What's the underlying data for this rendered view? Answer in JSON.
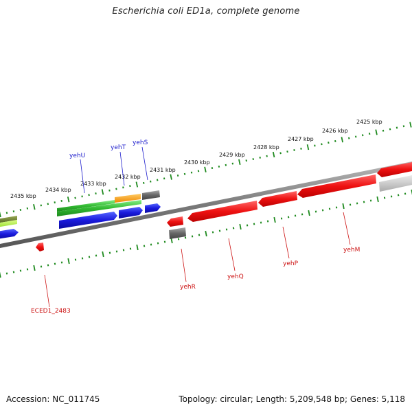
{
  "title": "Escherichia coli ED1a, complete genome",
  "footer": {
    "accession": "Accession: NC_011745",
    "summary": "Topology: circular; Length: 5,209,548 bp; Genes: 5,118"
  },
  "colors": {
    "backbone": "#8a8a8a",
    "tick": "#1e8a1e",
    "forward_gene_label": "#1a1acc",
    "reverse_gene_label": "#cc1111",
    "cds_red": "#ee1111",
    "cds_blue": "#1a1add",
    "cds_green": "#33bb33",
    "cds_orange": "#ff9900",
    "cds_grey": "#666666"
  },
  "scale_labels": [
    "2425 kbp",
    "2426 kbp",
    "2427 kbp",
    "2428 kbp",
    "2429 kbp",
    "2430 kbp",
    "2431 kbp",
    "2432 kbp",
    "2433 kbp",
    "2434 kbp",
    "2435 kbp"
  ],
  "genes": {
    "forward": [
      "yehU",
      "yehT",
      "yehS"
    ],
    "reverse": [
      "ECED1_2483",
      "yehR",
      "yehQ",
      "yehP",
      "yehM"
    ]
  }
}
